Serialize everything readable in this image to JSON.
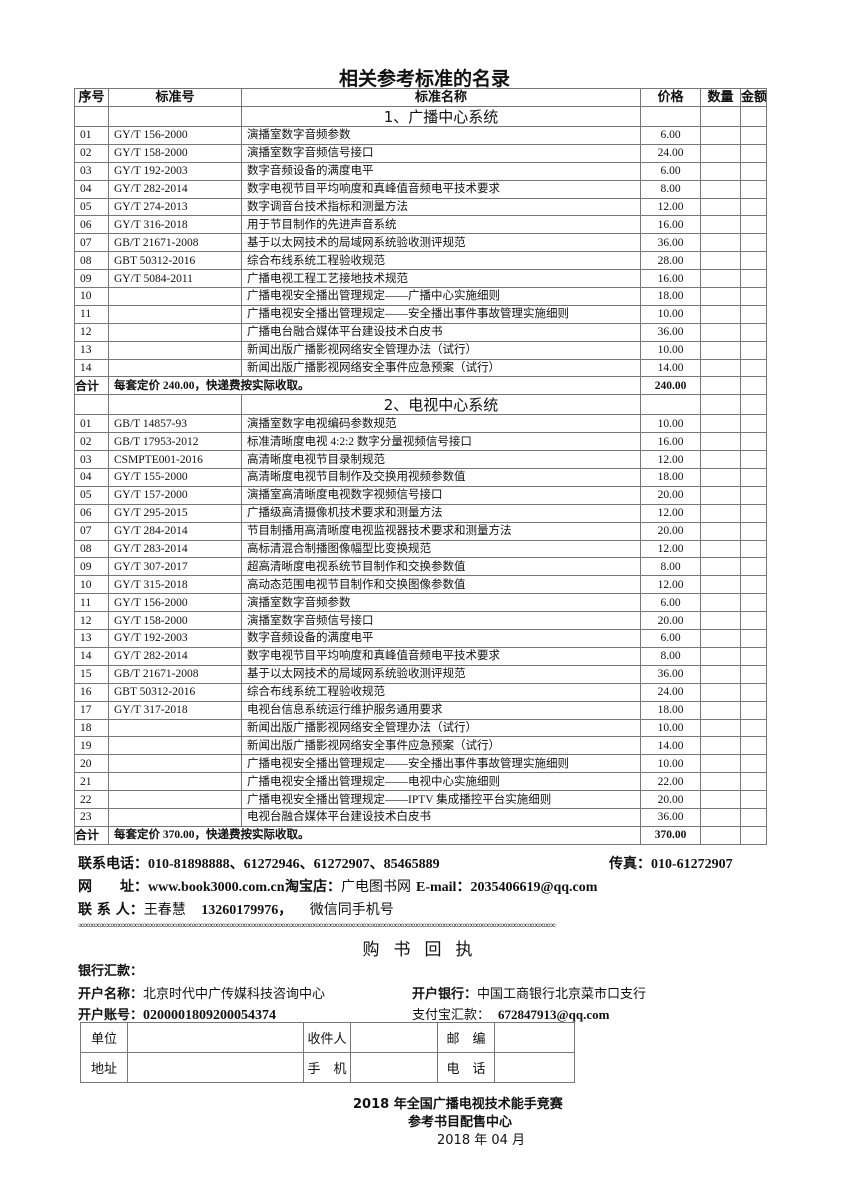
{
  "title": "相关参考标准的名录",
  "headers": {
    "no": "序号",
    "code": "标准号",
    "name": "标准名称",
    "price": "价格",
    "qty": "数量",
    "amount": "金额"
  },
  "sections": [
    {
      "heading": "1、广播中心系统",
      "rows": [
        [
          "01",
          "GY/T 156-2000",
          "演播室数字音频参数",
          "6.00"
        ],
        [
          "02",
          "GY/T 158-2000",
          "演播室数字音频信号接口",
          "24.00"
        ],
        [
          "03",
          "GY/T 192-2003",
          "数字音频设备的满度电平",
          "6.00"
        ],
        [
          "04",
          "GY/T 282-2014",
          "数字电视节目平均响度和真峰值音频电平技术要求",
          "8.00"
        ],
        [
          "05",
          "GY/T 274-2013",
          "数字调音台技术指标和测量方法",
          "12.00"
        ],
        [
          "06",
          "GY/T 316-2018",
          "用于节目制作的先进声音系统",
          "16.00"
        ],
        [
          "07",
          "GB/T 21671-2008",
          "基于以太网技术的局域网系统验收测评规范",
          "36.00"
        ],
        [
          "08",
          "GBT 50312-2016",
          "综合布线系统工程验收规范",
          "28.00"
        ],
        [
          "09",
          "GY/T 5084-2011",
          "广播电视工程工艺接地技术规范",
          "16.00"
        ],
        [
          "10",
          "",
          "广播电视安全播出管理规定——广播中心实施细则",
          "18.00"
        ],
        [
          "11",
          "",
          "广播电视安全播出管理规定——安全播出事件事故管理实施细则",
          "10.00"
        ],
        [
          "12",
          "",
          "广播电台融合媒体平台建设技术白皮书",
          "36.00"
        ],
        [
          "13",
          "",
          "新闻出版广播影视网络安全管理办法（试行）",
          "10.00"
        ],
        [
          "14",
          "",
          "新闻出版广播影视网络安全事件应急预案（试行）",
          "14.00"
        ]
      ],
      "total_label": "合计",
      "total_note": "每套定价 240.00，快递费按实际收取。",
      "total_price": "240.00"
    },
    {
      "heading": "2、电视中心系统",
      "rows": [
        [
          "01",
          "GB/T 14857-93",
          "演播室数字电视编码参数规范",
          "10.00"
        ],
        [
          "02",
          "GB/T 17953-2012",
          "标准清晰度电视 4:2:2 数字分量视频信号接口",
          "16.00"
        ],
        [
          "03",
          "CSMPTE001-2016",
          "高清晰度电视节目录制规范",
          "12.00"
        ],
        [
          "04",
          "GY/T 155-2000",
          "高清晰度电视节目制作及交换用视频参数值",
          "18.00"
        ],
        [
          "05",
          "GY/T 157-2000",
          "演播室高清晰度电视数字视频信号接口",
          "20.00"
        ],
        [
          "06",
          "GY/T 295-2015",
          "广播级高清摄像机技术要求和测量方法",
          "12.00"
        ],
        [
          "07",
          "GY/T 284-2014",
          "节目制播用高清晰度电视监视器技术要求和测量方法",
          "20.00"
        ],
        [
          "08",
          "GY/T 283-2014",
          "高标清混合制播图像幅型比变换规范",
          "12.00"
        ],
        [
          "09",
          "GY/T 307-2017",
          "超高清晰度电视系统节目制作和交换参数值",
          "8.00"
        ],
        [
          "10",
          "GY/T 315-2018",
          "高动态范围电视节目制作和交换图像参数值",
          "12.00"
        ],
        [
          "11",
          "GY/T 156-2000",
          "演播室数字音频参数",
          "6.00"
        ],
        [
          "12",
          "GY/T 158-2000",
          "演播室数字音频信号接口",
          "20.00"
        ],
        [
          "13",
          "GY/T 192-2003",
          "数字音频设备的满度电平",
          "6.00"
        ],
        [
          "14",
          "GY/T 282-2014",
          "数字电视节目平均响度和真峰值音频电平技术要求",
          "8.00"
        ],
        [
          "15",
          "GB/T 21671-2008",
          "基于以太网技术的局域网系统验收测评规范",
          "36.00"
        ],
        [
          "16",
          "GBT 50312-2016",
          "综合布线系统工程验收规范",
          "24.00"
        ],
        [
          "17",
          "GY/T 317-2018",
          "电视台信息系统运行维护服务通用要求",
          "18.00"
        ],
        [
          "18",
          "",
          "新闻出版广播影视网络安全管理办法（试行）",
          "10.00"
        ],
        [
          "19",
          "",
          "新闻出版广播影视网络安全事件应急预案（试行）",
          "14.00"
        ],
        [
          "20",
          "",
          "广播电视安全播出管理规定——安全播出事件事故管理实施细则",
          "10.00"
        ],
        [
          "21",
          "",
          "广播电视安全播出管理规定——电视中心实施细则",
          "22.00"
        ],
        [
          "22",
          "",
          "广播电视安全播出管理规定——IPTV 集成播控平台实施细则",
          "20.00"
        ],
        [
          "23",
          "",
          "电视台融合媒体平台建设技术白皮书",
          "36.00"
        ]
      ],
      "total_label": "合计",
      "total_note": "每套定价 370.00，快递费按实际收取。",
      "total_price": "370.00"
    }
  ],
  "contact": {
    "phone_label": "联系电话：",
    "phone": "010-81898888、61272946、61272907、85465889",
    "fax_label": "传真：",
    "fax": "010-61272907",
    "web_label": "网　　址：",
    "web": "www.book3000.com.cn",
    "taobao_label": "淘宝店：",
    "taobao": "广电图书网",
    "email_label": "E-mail：",
    "email": "2035406619@qq.com",
    "person_label": "联 系 人：",
    "person": "王春慧",
    "mobile": "13260179976，",
    "wechat": "微信同手机号"
  },
  "divider": "∞∞∞∞∞∞∞∞∞∞∞∞∞∞∞∞∞∞∞∞∞∞∞∞∞∞∞∞∞∞∞∞∞∞∞∞∞∞∞∞∞∞∞∞∞∞∞∞∞∞∞∞∞∞∞∞∞∞∞∞∞∞∞∞∞∞∞∞∞∞∞∞∞∞∞∞∞∞∞∞∞∞∞∞∞∞∞∞",
  "receipt": {
    "title": "购书回执",
    "bank_label": "银行汇款：",
    "account_name_label": "开户名称：",
    "account_name": "北京时代中广传媒科技咨询中心",
    "bank_name_label": "开户银行：",
    "bank_name": "中国工商银行北京菜市口支行",
    "account_no_label": "开户账号：",
    "account_no": "0200001809200054374",
    "alipay_label": "支付宝汇款：",
    "alipay": "672847913@qq.com",
    "form": {
      "unit": "单位",
      "recipient": "收件人",
      "postcode": "邮　编",
      "address": "地址",
      "mobile": "手　机",
      "phone": "电　话"
    }
  },
  "signature": {
    "line1": "2018 年全国广播电视技术能手竞赛",
    "line2": "参考书目配售中心",
    "date": "2018 年 04 月"
  }
}
